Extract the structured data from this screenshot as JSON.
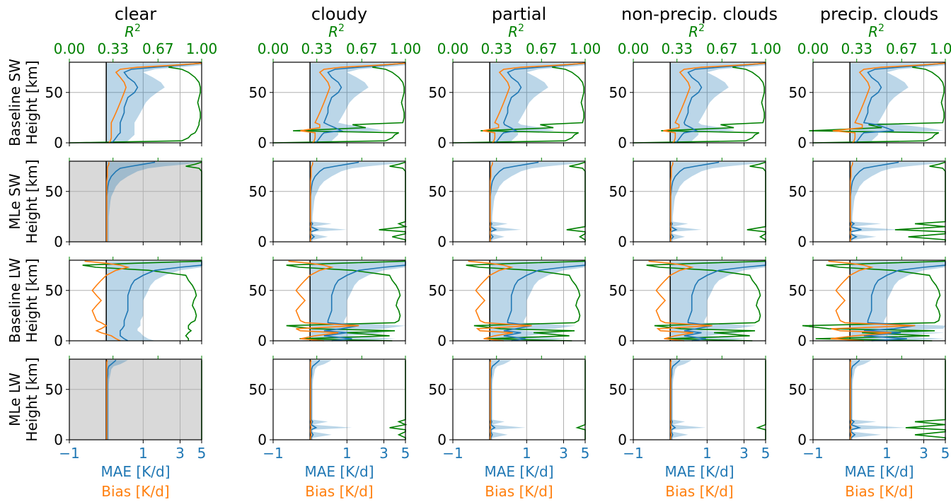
{
  "chart_data": {
    "type": "line",
    "layout": "grid 4 rows x 5 columns",
    "column_titles": [
      "clear",
      "cloudy",
      "partial",
      "non-precip. clouds",
      "precip. clouds"
    ],
    "row_labels": [
      {
        "model": "Baseline SW",
        "axis": "Height [km]"
      },
      {
        "model": "MLe SW",
        "axis": "Height [km]"
      },
      {
        "model": "Baseline LW",
        "axis": "Height [km]"
      },
      {
        "model": "MLe LW",
        "axis": "Height [km]"
      }
    ],
    "x_bottom": {
      "labels": [
        "MAE [K/d]",
        "Bias [K/d]"
      ],
      "ticks": [
        "−1",
        "1",
        "3",
        "5"
      ],
      "tick_values": [
        -1,
        1,
        3,
        5
      ],
      "range": [
        -1,
        5
      ],
      "scale": "symlog"
    },
    "x_top": {
      "label": "R",
      "label_sup": "2",
      "ticks": [
        "0.00",
        "0.33",
        "0.67",
        "1.00"
      ],
      "tick_values": [
        0,
        0.33,
        0.67,
        1
      ],
      "range": [
        0,
        1
      ]
    },
    "y": {
      "ticks": [
        "0",
        "50"
      ],
      "tick_values": [
        0,
        50
      ],
      "range": [
        0,
        80
      ]
    },
    "grid": true,
    "colors": {
      "mae": "#1f77b4",
      "bias": "#ff7f0e",
      "r2": "#008000",
      "band": "#1f77b4",
      "na_fill": "#d9d9d9",
      "zero_line": "#000000"
    },
    "series_names": [
      "MAE [K/d]",
      "Bias [K/d]",
      "R²"
    ],
    "not_applicable_panels": [
      [
        1,
        0
      ],
      [
        3,
        0
      ]
    ],
    "height_levels": [
      0,
      2,
      5,
      8,
      10,
      12,
      15,
      18,
      20,
      25,
      30,
      35,
      40,
      45,
      50,
      55,
      60,
      65,
      70,
      73,
      75,
      77,
      79
    ],
    "profiles": {
      "base_sw": {
        "mae": [
          0.1,
          0.15,
          0.2,
          0.25,
          0.3,
          0.3,
          0.3,
          0.3,
          0.3,
          0.35,
          0.4,
          0.4,
          0.45,
          0.5,
          0.7,
          0.8,
          0.7,
          0.5,
          0.4,
          0.6,
          1.5,
          3.0,
          5.0
        ],
        "band_hi": [
          0.4,
          0.5,
          0.6,
          0.7,
          0.7,
          0.7,
          0.7,
          0.7,
          0.7,
          0.8,
          0.9,
          1.0,
          1.1,
          1.3,
          1.6,
          2.0,
          1.8,
          1.4,
          1.0,
          1.5,
          3.0,
          5.0,
          5.0
        ],
        "bias": [
          0.05,
          0.08,
          0.1,
          0.1,
          0.1,
          0.1,
          0.1,
          0.1,
          0.1,
          0.15,
          0.2,
          0.25,
          0.3,
          0.35,
          0.4,
          0.45,
          0.4,
          0.3,
          0.2,
          0.3,
          0.8,
          2.5,
          5.0
        ],
        "r2": [
          0.0,
          0.85,
          0.9,
          0.92,
          0.95,
          0.96,
          0.97,
          0.98,
          0.98,
          0.99,
          0.99,
          0.98,
          0.97,
          0.98,
          0.99,
          0.99,
          0.98,
          0.95,
          0.9,
          0.85,
          0.75,
          0.8,
          1.0
        ]
      },
      "mle_sw": {
        "mae": [
          0.01,
          0.01,
          0.01,
          0.01,
          0.01,
          0.01,
          0.01,
          0.01,
          0.01,
          0.01,
          0.01,
          0.01,
          0.01,
          0.01,
          0.02,
          0.03,
          0.05,
          0.1,
          0.2,
          0.3,
          0.6,
          1.0,
          1.5
        ],
        "band_hi": [
          0.05,
          0.05,
          0.05,
          0.05,
          0.05,
          0.05,
          0.05,
          0.05,
          0.05,
          0.05,
          0.06,
          0.07,
          0.08,
          0.1,
          0.15,
          0.2,
          0.3,
          0.5,
          0.8,
          1.2,
          2.0,
          3.5,
          5.0
        ],
        "bias": [
          0.01,
          0.01,
          0.01,
          0.01,
          0.01,
          0.01,
          0.01,
          0.01,
          0.01,
          0.01,
          0.01,
          0.01,
          0.01,
          0.01,
          0.01,
          0.01,
          0.01,
          0.02,
          0.02,
          0.02,
          0.03,
          0.05,
          0.05
        ],
        "r2": [
          1.0,
          1.0,
          1.0,
          1.0,
          1.0,
          1.0,
          1.0,
          1.0,
          1.0,
          1.0,
          1.0,
          1.0,
          1.0,
          1.0,
          1.0,
          1.0,
          1.0,
          1.0,
          1.0,
          0.98,
          0.88,
          0.95,
          1.0
        ]
      },
      "base_lw": {
        "mae": [
          0.5,
          0.4,
          0.3,
          0.3,
          0.3,
          0.35,
          0.4,
          0.4,
          0.4,
          0.45,
          0.5,
          0.5,
          0.5,
          0.5,
          0.55,
          0.6,
          0.7,
          1.0,
          1.5,
          3.0,
          5.0,
          5.0,
          5.0
        ],
        "band_hi": [
          1.5,
          1.2,
          1.0,
          0.9,
          0.8,
          0.8,
          0.9,
          0.9,
          0.9,
          1.0,
          1.0,
          1.0,
          1.0,
          1.1,
          1.2,
          1.3,
          1.5,
          2.0,
          3.0,
          5.0,
          5.0,
          5.0,
          5.0
        ],
        "bias": [
          0.3,
          0.2,
          0.1,
          -0.1,
          -0.2,
          -0.1,
          0.0,
          -0.1,
          -0.2,
          -0.25,
          -0.3,
          -0.2,
          -0.1,
          -0.2,
          -0.3,
          -0.2,
          -0.1,
          0.0,
          0.2,
          0.5,
          0.3,
          0.0,
          -0.5
        ],
        "r2": [
          0.9,
          0.9,
          0.88,
          0.9,
          0.92,
          0.9,
          0.9,
          0.92,
          0.95,
          0.96,
          0.95,
          0.93,
          0.94,
          0.96,
          0.95,
          0.93,
          0.9,
          0.88,
          0.6,
          0.2,
          0.1,
          0.5,
          1.0
        ]
      },
      "mle_lw": {
        "mae": [
          0.02,
          0.02,
          0.02,
          0.02,
          0.02,
          0.02,
          0.02,
          0.02,
          0.02,
          0.02,
          0.02,
          0.02,
          0.02,
          0.02,
          0.02,
          0.02,
          0.02,
          0.03,
          0.03,
          0.05,
          0.1,
          0.15,
          0.2
        ],
        "band_hi": [
          0.05,
          0.05,
          0.05,
          0.05,
          0.05,
          0.05,
          0.05,
          0.05,
          0.05,
          0.05,
          0.05,
          0.05,
          0.05,
          0.05,
          0.05,
          0.05,
          0.06,
          0.08,
          0.1,
          0.15,
          0.3,
          0.4,
          0.5
        ],
        "bias": [
          0.01,
          0.01,
          0.01,
          0.01,
          0.01,
          0.01,
          0.01,
          0.01,
          0.01,
          0.01,
          0.01,
          0.01,
          0.01,
          0.01,
          0.01,
          0.01,
          0.01,
          0.01,
          0.01,
          0.01,
          0.01,
          0.01,
          0.02
        ],
        "r2": [
          1.0,
          1.0,
          1.0,
          1.0,
          1.0,
          1.0,
          1.0,
          1.0,
          1.0,
          1.0,
          1.0,
          1.0,
          1.0,
          1.0,
          1.0,
          1.0,
          1.0,
          1.0,
          1.0,
          1.0,
          1.0,
          1.0,
          1.0
        ]
      }
    },
    "cloud_features": {
      "base_sw": [
        {
          "z": 0,
          "band_hi": 0.8
        },
        {
          "z": 12,
          "band_hi": 3.0,
          "mae": 0.8,
          "bias": -0.3,
          "r2": 0.15
        },
        {
          "z": 15,
          "band_hi": 2.0,
          "mae": 0.6,
          "bias": 0.1,
          "r2": 0.7
        },
        {
          "z": 18,
          "band_hi": 1.0,
          "mae": 0.4,
          "bias": 0.1,
          "r2": 0.6
        }
      ],
      "mle_sw": [
        {
          "z": 5,
          "band_hi": 0.4,
          "mae": 0.08,
          "bias": 0.01,
          "r2": 0.9
        },
        {
          "z": 12,
          "band_hi": 1.0,
          "mae": 0.15,
          "bias": 0.01,
          "r2": 0.8
        },
        {
          "z": 18,
          "band_hi": 0.5,
          "mae": 0.05,
          "bias": 0.01,
          "r2": 0.95
        }
      ],
      "base_lw": [
        {
          "z": 2,
          "band_hi": 4.0,
          "mae": 1.2,
          "bias": -0.4,
          "r2": 0.2
        },
        {
          "z": 8,
          "band_hi": 3.5,
          "mae": 1.0,
          "bias": 0.8,
          "r2": 0.55
        },
        {
          "z": 12,
          "band_hi": 3.0,
          "mae": 0.8,
          "bias": -0.2,
          "r2": 0.3
        },
        {
          "z": 15,
          "band_hi": 5.0,
          "mae": 1.5,
          "bias": 1.5,
          "r2": 0.1
        }
      ],
      "mle_lw": [
        {
          "z": 5,
          "band_hi": 0.5,
          "mae": 0.06,
          "bias": 0.01,
          "r2": 0.95
        },
        {
          "z": 12,
          "band_hi": 1.2,
          "mae": 0.12,
          "bias": 0.01,
          "r2": 0.88
        },
        {
          "z": 18,
          "band_hi": 0.4,
          "mae": 0.05,
          "bias": 0.01,
          "r2": 0.95
        }
      ]
    },
    "cloud_scale": [
      0,
      1.0,
      0.8,
      0.8,
      1.6
    ]
  }
}
